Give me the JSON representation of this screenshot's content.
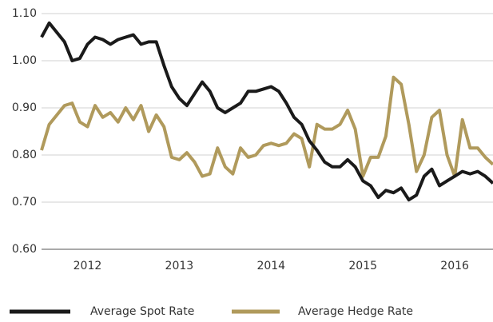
{
  "chart_data": {
    "type": "line",
    "categories": [
      null,
      null,
      null,
      null,
      null,
      null,
      "2012",
      null,
      null,
      null,
      null,
      null,
      null,
      null,
      null,
      null,
      null,
      null,
      "2013",
      null,
      null,
      null,
      null,
      null,
      null,
      null,
      null,
      null,
      null,
      null,
      "2014",
      null,
      null,
      null,
      null,
      null,
      null,
      null,
      null,
      null,
      null,
      null,
      "2015",
      null,
      null,
      null,
      null,
      null,
      null,
      null,
      null,
      null,
      null,
      null,
      "2016",
      null,
      null,
      null,
      null,
      null
    ],
    "series": [
      {
        "name": "Average Spot Rate",
        "color": "#1a1a1a",
        "values": [
          1.05,
          1.08,
          1.06,
          1.04,
          1.0,
          1.005,
          1.035,
          1.05,
          1.045,
          1.035,
          1.045,
          1.05,
          1.055,
          1.035,
          1.04,
          1.04,
          0.99,
          0.945,
          0.92,
          0.905,
          0.93,
          0.955,
          0.935,
          0.9,
          0.89,
          0.9,
          0.91,
          0.935,
          0.935,
          0.94,
          0.945,
          0.935,
          0.91,
          0.88,
          0.865,
          0.83,
          0.81,
          0.785,
          0.775,
          0.775,
          0.79,
          0.775,
          0.745,
          0.735,
          0.71,
          0.725,
          0.72,
          0.73,
          0.705,
          0.715,
          0.755,
          0.77,
          0.735,
          0.745,
          0.755,
          0.765,
          0.76,
          0.765,
          0.755,
          0.74
        ]
      },
      {
        "name": "Average Hedge Rate",
        "color": "#b09a5c",
        "values": [
          0.81,
          0.865,
          0.885,
          0.905,
          0.91,
          0.87,
          0.86,
          0.905,
          0.88,
          0.89,
          0.87,
          0.9,
          0.875,
          0.905,
          0.85,
          0.885,
          0.86,
          0.795,
          0.79,
          0.805,
          0.785,
          0.755,
          0.76,
          0.815,
          0.775,
          0.76,
          0.815,
          0.795,
          0.8,
          0.82,
          0.825,
          0.82,
          0.825,
          0.845,
          0.835,
          0.775,
          0.865,
          0.855,
          0.855,
          0.865,
          0.895,
          0.855,
          0.755,
          0.795,
          0.795,
          0.84,
          0.965,
          0.95,
          0.865,
          0.765,
          0.8,
          0.88,
          0.895,
          0.8,
          0.755,
          0.875,
          0.815,
          0.815,
          0.795,
          0.78
        ]
      }
    ],
    "ylim": [
      0.6,
      1.1
    ],
    "yticks": [
      {
        "value": 0.6,
        "label": "0.60"
      },
      {
        "value": 0.7,
        "label": "0.70"
      },
      {
        "value": 0.8,
        "label": "0.80"
      },
      {
        "value": 0.9,
        "label": "0.90"
      },
      {
        "value": 1.0,
        "label": "1.00"
      },
      {
        "value": 1.1,
        "label": "1.10"
      }
    ],
    "grid": true
  }
}
